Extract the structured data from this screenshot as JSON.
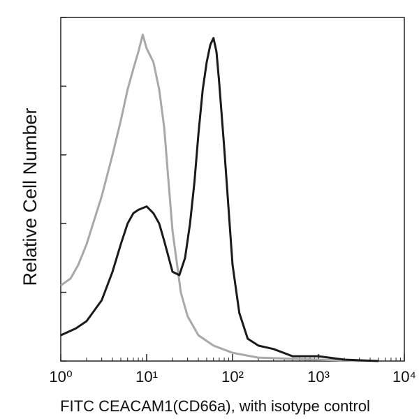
{
  "chart_data": {
    "type": "line",
    "x_label": "FITC CEACAM1(CD66a), with isotype control",
    "y_label": "Relative Cell Number",
    "xscale": "log",
    "xlim": [
      1,
      10000
    ],
    "xticks": [
      {
        "value": 1,
        "label": "10⁰"
      },
      {
        "value": 10,
        "label": "10¹"
      },
      {
        "value": 100,
        "label": "10²"
      },
      {
        "value": 1000,
        "label": "10³"
      },
      {
        "value": 10000,
        "label": "10⁴"
      }
    ],
    "ylim": [
      0,
      100
    ],
    "yticks": [
      0,
      20,
      40,
      60,
      80,
      100
    ],
    "series": [
      {
        "color": "#a8a8a8",
        "x": [
          1,
          1.3,
          1.6,
          2,
          3,
          4,
          5,
          6,
          7,
          8,
          9,
          10,
          12,
          14,
          16,
          18,
          20,
          25,
          30,
          40,
          60,
          100,
          200,
          1000,
          3000
        ],
        "values": [
          22,
          24,
          28,
          34,
          48,
          60,
          70,
          79,
          85,
          90,
          95,
          91,
          87,
          79,
          68,
          52,
          38,
          20,
          13,
          7.5,
          4.5,
          2.4,
          1,
          0.4,
          0
        ]
      },
      {
        "color": "#1a1a1a",
        "x": [
          1,
          1.5,
          2,
          3,
          4,
          5,
          6,
          7,
          8,
          10,
          12,
          14,
          16,
          20,
          24,
          28,
          32,
          36,
          40,
          45,
          50,
          55,
          60,
          65,
          70,
          80,
          90,
          100,
          120,
          150,
          200,
          300,
          500,
          1000,
          2000,
          5000
        ],
        "values": [
          7.5,
          9.5,
          11.6,
          17.7,
          26,
          34,
          40,
          43,
          44,
          45,
          43,
          40,
          35,
          26,
          25,
          30,
          40,
          52,
          66,
          79,
          87,
          92,
          94,
          90,
          81,
          62,
          44,
          28,
          14,
          6.5,
          4.5,
          3.5,
          1.4,
          1.4,
          0.4,
          0
        ]
      }
    ]
  }
}
